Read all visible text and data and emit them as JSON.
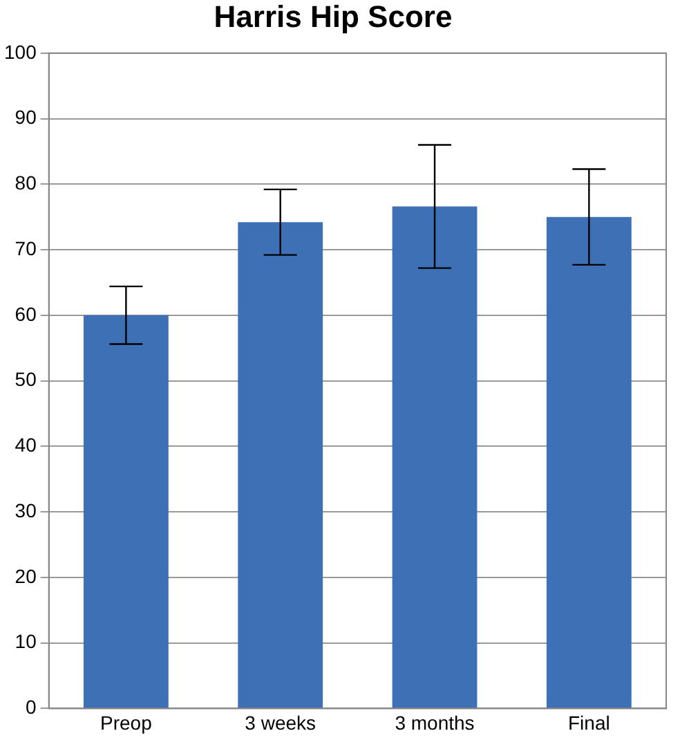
{
  "chart_data": {
    "type": "bar",
    "title": "Harris Hip Score",
    "categories": [
      "Preop",
      "3 weeks",
      "3 months",
      "Final"
    ],
    "values": [
      60,
      74.2,
      76.6,
      75
    ],
    "errors": [
      4.4,
      5,
      9.4,
      7.3
    ],
    "color": "#3d70b4",
    "ylim": [
      0,
      100
    ],
    "yticks": [
      0,
      10,
      20,
      30,
      40,
      50,
      60,
      70,
      80,
      90,
      100
    ],
    "grid": "y",
    "legend": false
  }
}
